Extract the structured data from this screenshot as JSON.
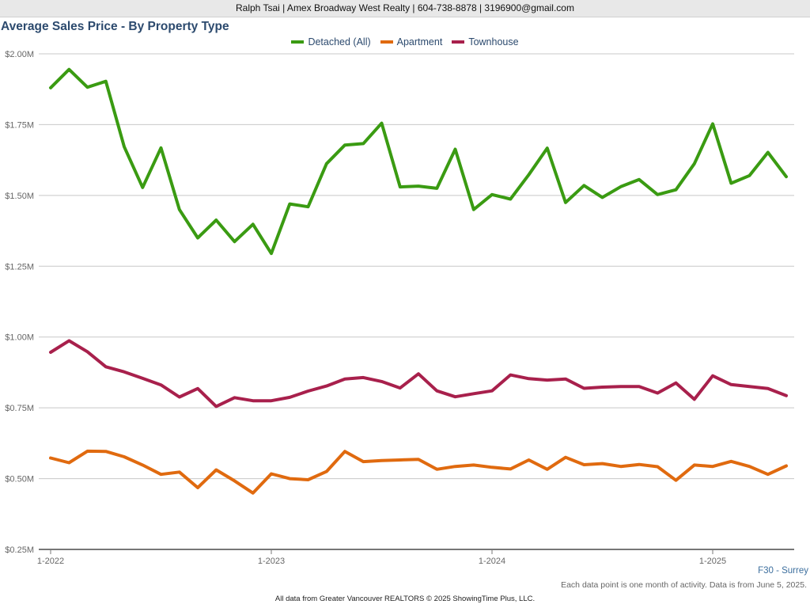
{
  "header": {
    "contact": "Ralph Tsai | Amex Broadway West Realty | 604-738-8878 | 3196900@gmail.com"
  },
  "region_label": "F30 - Surrey",
  "note": "Each data point is one month of activity. Data is from June 5, 2025.",
  "footer": "All data from Greater Vancouver REALTORS © 2025 ShowingTime Plus, LLC.",
  "chart_data": {
    "type": "line",
    "title": "Average Sales Price - By Property Type",
    "xlabel": "",
    "ylabel": "",
    "ylim": [
      250000,
      2000000
    ],
    "yticks": [
      250000,
      500000,
      750000,
      1000000,
      1250000,
      1500000,
      1750000,
      2000000
    ],
    "ytick_labels": [
      "$0.25M",
      "$0.50M",
      "$0.75M",
      "$1.00M",
      "$1.25M",
      "$1.50M",
      "$1.75M",
      "$2.00M"
    ],
    "x": [
      "2022-01",
      "2022-02",
      "2022-03",
      "2022-04",
      "2022-05",
      "2022-06",
      "2022-07",
      "2022-08",
      "2022-09",
      "2022-10",
      "2022-11",
      "2022-12",
      "2023-01",
      "2023-02",
      "2023-03",
      "2023-04",
      "2023-05",
      "2023-06",
      "2023-07",
      "2023-08",
      "2023-09",
      "2023-10",
      "2023-11",
      "2023-12",
      "2024-01",
      "2024-02",
      "2024-03",
      "2024-04",
      "2024-05",
      "2024-06",
      "2024-07",
      "2024-08",
      "2024-09",
      "2024-10",
      "2024-11",
      "2024-12",
      "2025-01",
      "2025-02",
      "2025-03",
      "2025-04",
      "2025-05"
    ],
    "xticks": [
      "2022-01",
      "2023-01",
      "2024-01",
      "2025-01"
    ],
    "xtick_labels": [
      "1-2022",
      "1-2023",
      "1-2024",
      "1-2025"
    ],
    "grid": true,
    "legend_position": "top-center",
    "series": [
      {
        "name": "Detached (All)",
        "color": "#3a9b12",
        "values": [
          1880000,
          1945000,
          1882000,
          1903000,
          1672000,
          1528000,
          1668000,
          1450000,
          1350000,
          1413000,
          1337000,
          1398000,
          1295000,
          1470000,
          1460000,
          1612000,
          1678000,
          1683000,
          1755000,
          1530000,
          1533000,
          1525000,
          1663000,
          1450000,
          1503000,
          1487000,
          1573000,
          1667000,
          1475000,
          1535000,
          1493000,
          1531000,
          1556000,
          1503000,
          1520000,
          1612000,
          1753000,
          1543000,
          1570000,
          1652000,
          1566000
        ]
      },
      {
        "name": "Apartment",
        "color": "#e06a0f",
        "values": [
          573000,
          556000,
          597000,
          596000,
          577000,
          548000,
          515000,
          523000,
          468000,
          531000,
          492000,
          449000,
          517000,
          500000,
          496000,
          525000,
          596000,
          560000,
          564000,
          566000,
          568000,
          533000,
          543000,
          548000,
          540000,
          534000,
          566000,
          533000,
          575000,
          549000,
          553000,
          543000,
          550000,
          542000,
          494000,
          548000,
          543000,
          561000,
          543000,
          515000,
          545000
        ]
      },
      {
        "name": "Townhouse",
        "color": "#a8204c",
        "values": [
          946000,
          987000,
          948000,
          895000,
          877000,
          854000,
          831000,
          788000,
          818000,
          755000,
          786000,
          775000,
          775000,
          787000,
          809000,
          827000,
          852000,
          857000,
          843000,
          820000,
          870000,
          810000,
          789000,
          800000,
          810000,
          866000,
          853000,
          848000,
          852000,
          819000,
          823000,
          825000,
          825000,
          802000,
          838000,
          780000,
          863000,
          832000,
          825000,
          818000,
          793000
        ]
      }
    ]
  }
}
